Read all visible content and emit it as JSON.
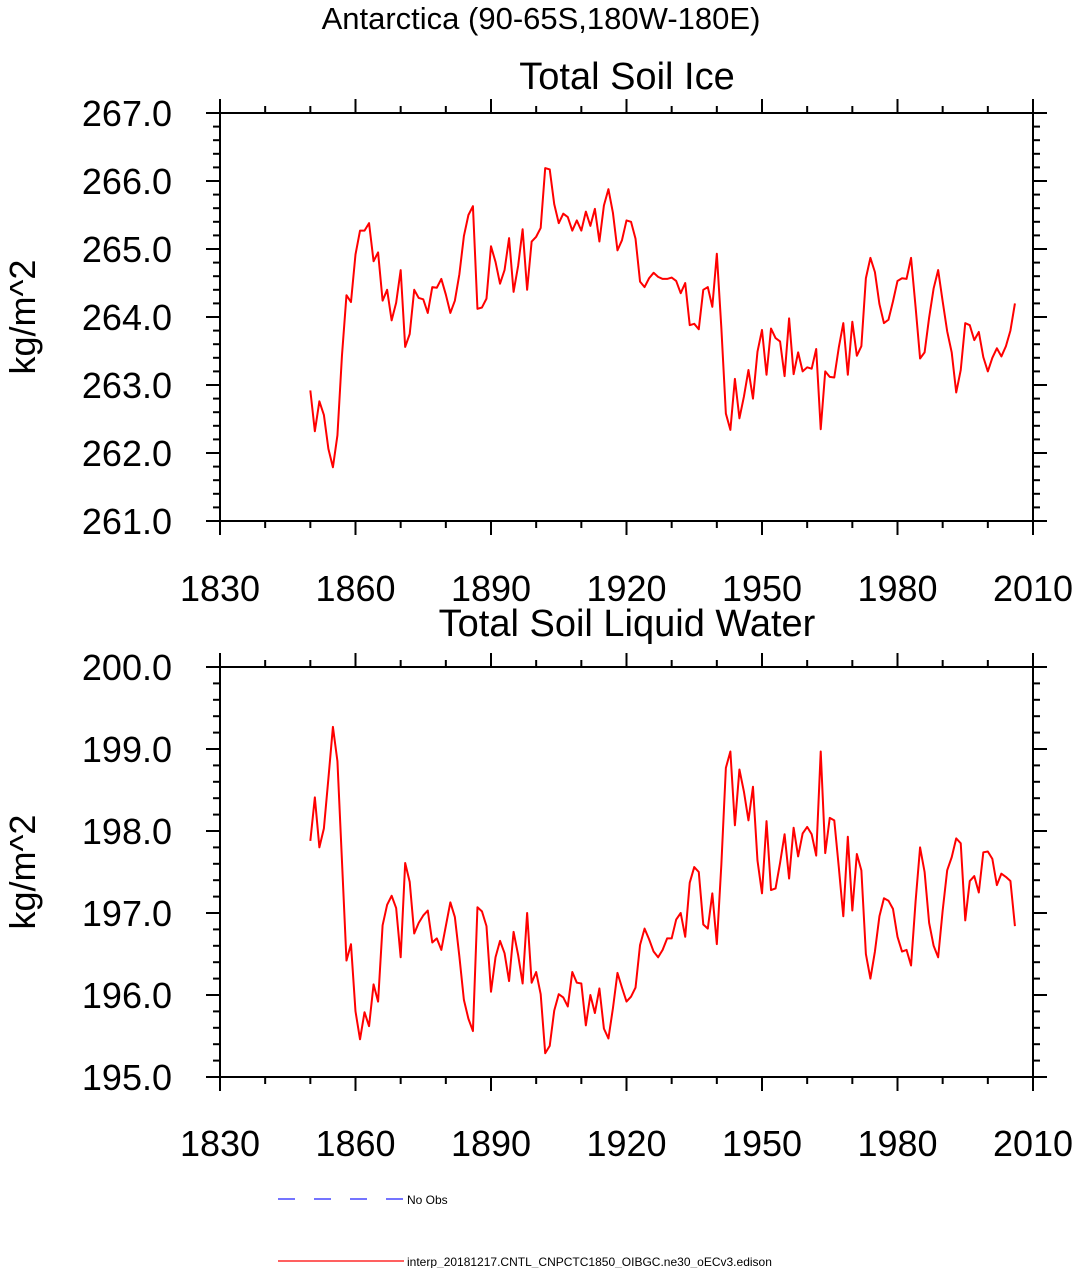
{
  "figure": {
    "title": "Antarctica (90-65S,180W-180E)"
  },
  "legend": {
    "entries": [
      {
        "label": "No Obs",
        "color": "#2222ff",
        "style": "dashed"
      },
      {
        "label": "interp_20181217.CNTL_CNPCTC1850_OIBGC.ne30_oECv3.edison",
        "color": "#ff0000",
        "style": "solid"
      }
    ]
  },
  "chart_data": [
    {
      "type": "line",
      "title": "Total Soil Ice",
      "xlabel": "",
      "ylabel": "kg/m^2",
      "xlim": [
        1830,
        2010
      ],
      "ylim": [
        261.0,
        267.0
      ],
      "xticks": [
        1830,
        1860,
        1890,
        1920,
        1950,
        1980,
        2010
      ],
      "xtick_labels": [
        "1830",
        "1860",
        "1890",
        "1920",
        "1950",
        "1980",
        "2010"
      ],
      "yticks": [
        261.0,
        262.0,
        263.0,
        264.0,
        265.0,
        266.0,
        267.0
      ],
      "ytick_labels": [
        "261.0",
        "262.0",
        "263.0",
        "264.0",
        "265.0",
        "266.0",
        "267.0"
      ],
      "grid": false,
      "series": [
        {
          "name": "interp_20181217.CNTL_CNPCTC1850_OIBGC.ne30_oECv3.edison",
          "color": "#ff0000",
          "x_start": 1850,
          "x_step": 1,
          "values": [
            262.92,
            262.32,
            262.76,
            262.56,
            262.06,
            261.79,
            262.26,
            263.43,
            264.32,
            264.22,
            264.92,
            265.27,
            265.27,
            265.38,
            264.82,
            264.95,
            264.24,
            264.4,
            263.95,
            264.21,
            264.69,
            263.56,
            263.75,
            264.4,
            264.28,
            264.26,
            264.06,
            264.44,
            264.43,
            264.56,
            264.33,
            264.06,
            264.24,
            264.63,
            265.19,
            265.5,
            265.63,
            264.12,
            264.14,
            264.27,
            265.04,
            264.81,
            264.49,
            264.69,
            265.16,
            264.37,
            264.75,
            265.29,
            264.4,
            265.11,
            265.18,
            265.31,
            266.19,
            266.17,
            265.66,
            265.38,
            265.52,
            265.47,
            265.27,
            265.42,
            265.27,
            265.55,
            265.34,
            265.59,
            265.11,
            265.64,
            265.88,
            265.53,
            264.98,
            265.13,
            265.42,
            265.4,
            265.15,
            264.52,
            264.44,
            264.57,
            264.65,
            264.59,
            264.56,
            264.56,
            264.58,
            264.53,
            264.35,
            264.5,
            263.88,
            263.9,
            263.82,
            264.4,
            264.44,
            264.15,
            264.93,
            263.84,
            262.58,
            262.34,
            263.09,
            262.51,
            262.83,
            263.22,
            262.8,
            263.49,
            263.81,
            263.15,
            263.83,
            263.69,
            263.64,
            263.13,
            263.98,
            263.16,
            263.48,
            263.2,
            263.26,
            263.24,
            263.53,
            262.35,
            263.2,
            263.12,
            263.11,
            263.55,
            263.91,
            263.15,
            263.93,
            263.43,
            263.57,
            264.57,
            264.87,
            264.66,
            264.19,
            263.91,
            263.96,
            264.23,
            264.53,
            264.57,
            264.56,
            264.87,
            264.15,
            263.39,
            263.48,
            263.99,
            264.42,
            264.69,
            264.23,
            263.79,
            263.48,
            262.89,
            263.22,
            263.91,
            263.88,
            263.66,
            263.78,
            263.41,
            263.2,
            263.4,
            263.54,
            263.42,
            263.57,
            263.8,
            264.2
          ]
        }
      ]
    },
    {
      "type": "line",
      "title": "Total Soil Liquid Water",
      "xlabel": "",
      "ylabel": "kg/m^2",
      "xlim": [
        1830,
        2010
      ],
      "ylim": [
        195.0,
        200.0
      ],
      "xticks": [
        1830,
        1860,
        1890,
        1920,
        1950,
        1980,
        2010
      ],
      "xtick_labels": [
        "1830",
        "1860",
        "1890",
        "1920",
        "1950",
        "1980",
        "2010"
      ],
      "yticks": [
        195.0,
        196.0,
        197.0,
        198.0,
        199.0,
        200.0
      ],
      "ytick_labels": [
        "195.0",
        "196.0",
        "197.0",
        "198.0",
        "199.0",
        "200.0"
      ],
      "grid": false,
      "series": [
        {
          "name": "interp_20181217.CNTL_CNPCTC1850_OIBGC.ne30_oECv3.edison",
          "color": "#ff0000",
          "x_start": 1850,
          "x_step": 1,
          "values": [
            197.88,
            198.41,
            197.8,
            198.03,
            198.64,
            199.27,
            198.85,
            197.64,
            196.42,
            196.62,
            195.8,
            195.46,
            195.79,
            195.62,
            196.13,
            195.92,
            196.85,
            197.1,
            197.21,
            197.06,
            196.46,
            197.61,
            197.38,
            196.75,
            196.88,
            196.97,
            197.03,
            196.64,
            196.69,
            196.55,
            196.84,
            197.13,
            196.95,
            196.47,
            195.94,
            195.71,
            195.56,
            197.07,
            197.02,
            196.84,
            196.04,
            196.46,
            196.66,
            196.51,
            196.17,
            196.77,
            196.49,
            196.14,
            197.0,
            196.15,
            196.28,
            196.01,
            195.29,
            195.38,
            195.81,
            196.01,
            195.97,
            195.86,
            196.28,
            196.15,
            196.14,
            195.63,
            196.0,
            195.78,
            196.08,
            195.59,
            195.47,
            195.84,
            196.27,
            196.09,
            195.92,
            195.98,
            196.09,
            196.61,
            196.81,
            196.68,
            196.53,
            196.46,
            196.55,
            196.69,
            196.69,
            196.92,
            197.0,
            196.71,
            197.37,
            197.56,
            197.5,
            196.86,
            196.81,
            197.24,
            196.62,
            197.59,
            198.77,
            198.97,
            198.07,
            198.75,
            198.48,
            198.13,
            198.54,
            197.64,
            197.24,
            198.12,
            197.28,
            197.3,
            197.61,
            197.96,
            197.42,
            198.04,
            197.69,
            197.97,
            198.05,
            197.96,
            197.7,
            198.97,
            197.73,
            198.16,
            198.13,
            197.56,
            196.96,
            197.93,
            197.03,
            197.72,
            197.52,
            196.5,
            196.2,
            196.53,
            196.96,
            197.18,
            197.15,
            197.05,
            196.71,
            196.53,
            196.55,
            196.36,
            197.14,
            197.8,
            197.5,
            196.88,
            196.6,
            196.46,
            197.03,
            197.52,
            197.68,
            197.91,
            197.85,
            196.91,
            197.39,
            197.45,
            197.25,
            197.74,
            197.75,
            197.66,
            197.34,
            197.48,
            197.44,
            197.39,
            196.84
          ]
        }
      ]
    }
  ]
}
